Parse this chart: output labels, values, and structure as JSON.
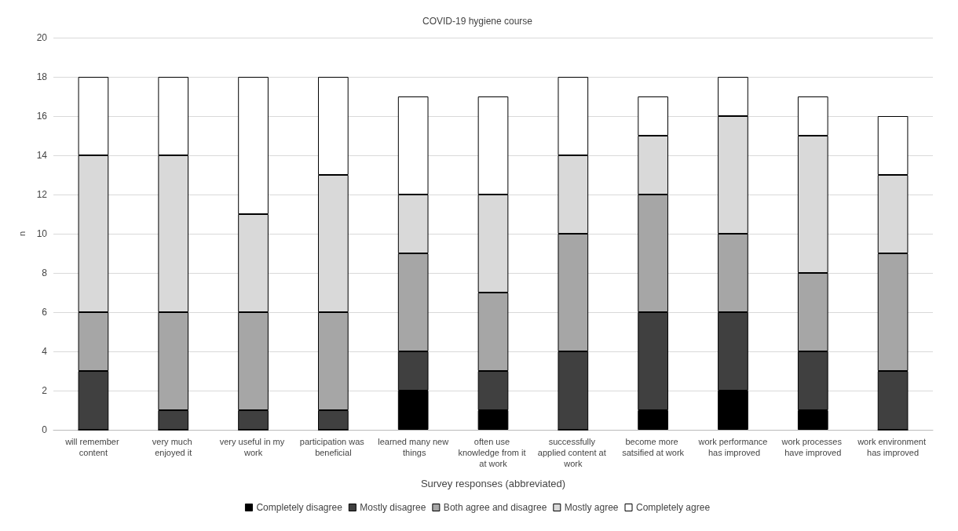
{
  "chart_data": {
    "type": "bar",
    "title": "COVID-19 hygiene course",
    "xlabel": "Survey responses (abbreviated)",
    "ylabel": "n",
    "categories": [
      "will remember content",
      "very much enjoyed it",
      "very useful in my work",
      "participation was beneficial",
      "learned many new things",
      "often use knowledge from it at work",
      "successfully applied content at work",
      "become more satsified at work",
      "work performance has improved",
      "work processes have improved",
      "work environment has improved"
    ],
    "stacked": true,
    "ylim": [
      0,
      20
    ],
    "yticks": [
      0,
      2,
      4,
      6,
      8,
      10,
      12,
      14,
      16,
      18,
      20
    ],
    "grid": "y",
    "legend": "bottom",
    "series": [
      {
        "name": "Completely disagree",
        "color": "#000000",
        "values": [
          0,
          0,
          0,
          0,
          2,
          1,
          0,
          1,
          2,
          1,
          0
        ]
      },
      {
        "name": "Mostly disagree",
        "color": "#404040",
        "values": [
          3,
          1,
          1,
          1,
          2,
          2,
          4,
          5,
          4,
          3,
          3
        ]
      },
      {
        "name": "Both agree and disagree",
        "color": "#a6a6a6",
        "values": [
          3,
          5,
          5,
          5,
          5,
          4,
          6,
          6,
          4,
          4,
          6
        ]
      },
      {
        "name": "Mostly agree",
        "color": "#d9d9d9",
        "values": [
          8,
          8,
          5,
          7,
          3,
          5,
          4,
          3,
          6,
          7,
          4
        ]
      },
      {
        "name": "Completely agree",
        "color": "#ffffff",
        "values": [
          4,
          4,
          7,
          5,
          5,
          5,
          4,
          2,
          2,
          2,
          3
        ]
      }
    ]
  }
}
